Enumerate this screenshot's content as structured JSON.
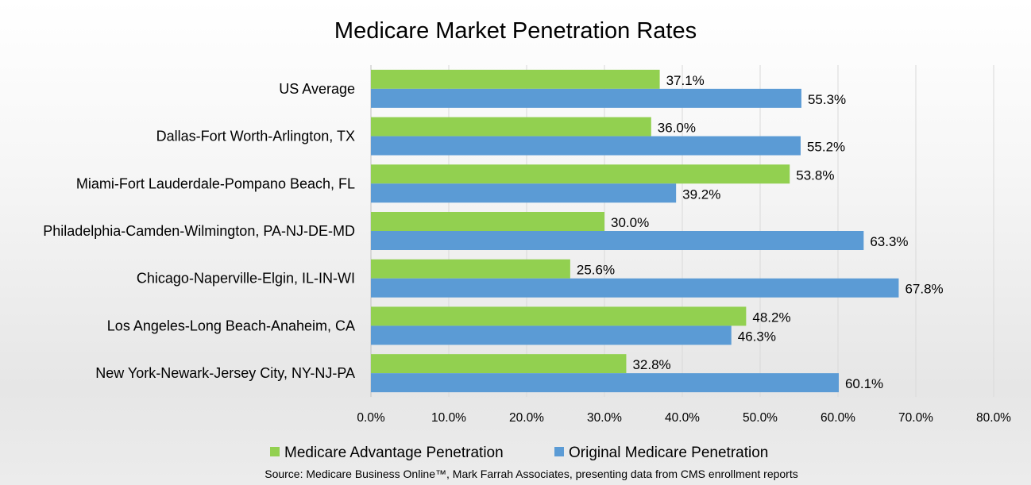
{
  "chart_data": {
    "type": "bar",
    "orientation": "horizontal",
    "title": "Medicare Market Penetration Rates",
    "xlabel": "",
    "ylabel": "",
    "categories": [
      "US Average",
      "Dallas-Fort Worth-Arlington, TX",
      "Miami-Fort Lauderdale-Pompano Beach, FL",
      "Philadelphia-Camden-Wilmington, PA-NJ-DE-MD",
      "Chicago-Naperville-Elgin, IL-IN-WI",
      "Los Angeles-Long Beach-Anaheim, CA",
      "New York-Newark-Jersey City, NY-NJ-PA"
    ],
    "series": [
      {
        "name": "Medicare Advantage Penetration",
        "color": "#92D050",
        "values": [
          37.1,
          36.0,
          53.8,
          30.0,
          25.6,
          48.2,
          32.8
        ],
        "labels": [
          "37.1%",
          "36.0%",
          "53.8%",
          "30.0%",
          "25.6%",
          "48.2%",
          "32.8%"
        ]
      },
      {
        "name": "Original Medicare Penetration",
        "color": "#5B9BD5",
        "values": [
          55.3,
          55.2,
          39.2,
          63.3,
          67.8,
          46.3,
          60.1
        ],
        "labels": [
          "55.3%",
          "55.2%",
          "39.2%",
          "63.3%",
          "67.8%",
          "46.3%",
          "60.1%"
        ]
      }
    ],
    "xlim": [
      0,
      80
    ],
    "x_ticks": [
      0,
      10,
      20,
      30,
      40,
      50,
      60,
      70,
      80
    ],
    "x_tick_labels": [
      "0.0%",
      "10.0%",
      "20.0%",
      "30.0%",
      "40.0%",
      "50.0%",
      "60.0%",
      "70.0%",
      "80.0%"
    ],
    "grid": true,
    "legend_position": "bottom",
    "source": "Source: Medicare Business Online™, Mark Farrah Associates, presenting data from CMS enrollment reports"
  }
}
